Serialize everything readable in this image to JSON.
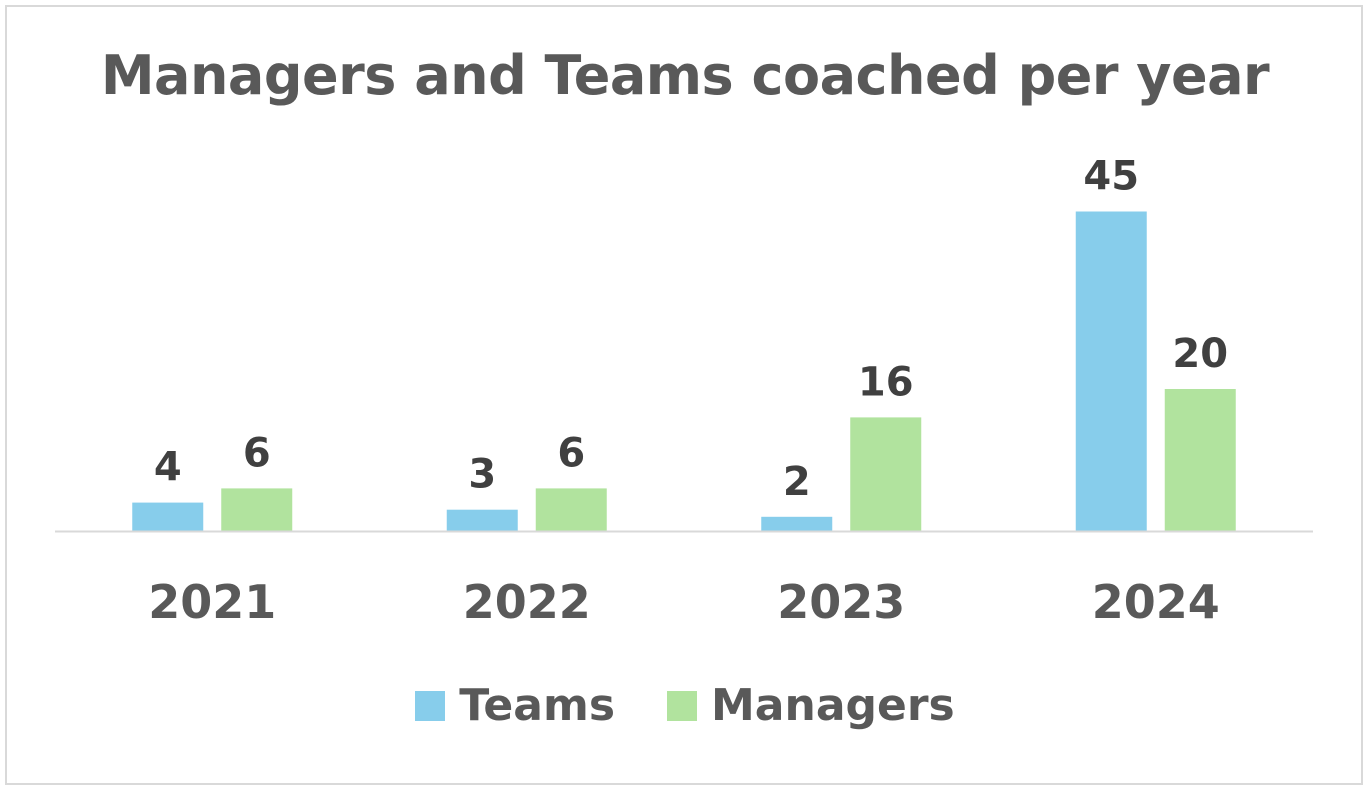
{
  "chart_data": {
    "type": "bar",
    "title": "Managers and Teams coached per year",
    "categories": [
      "2021",
      "2022",
      "2023",
      "2024"
    ],
    "series": [
      {
        "name": "Teams",
        "color": "#87CDEB",
        "values": [
          4,
          3,
          2,
          45
        ]
      },
      {
        "name": "Managers",
        "color": "#B1E39E",
        "values": [
          6,
          6,
          16,
          20
        ]
      }
    ],
    "data_labels": true,
    "grid": false,
    "ylim": [
      0,
      45
    ],
    "legend_position": "bottom",
    "axis_color": "#d9d9d9",
    "text_color": "#595959",
    "data_label_color": "#404040"
  }
}
